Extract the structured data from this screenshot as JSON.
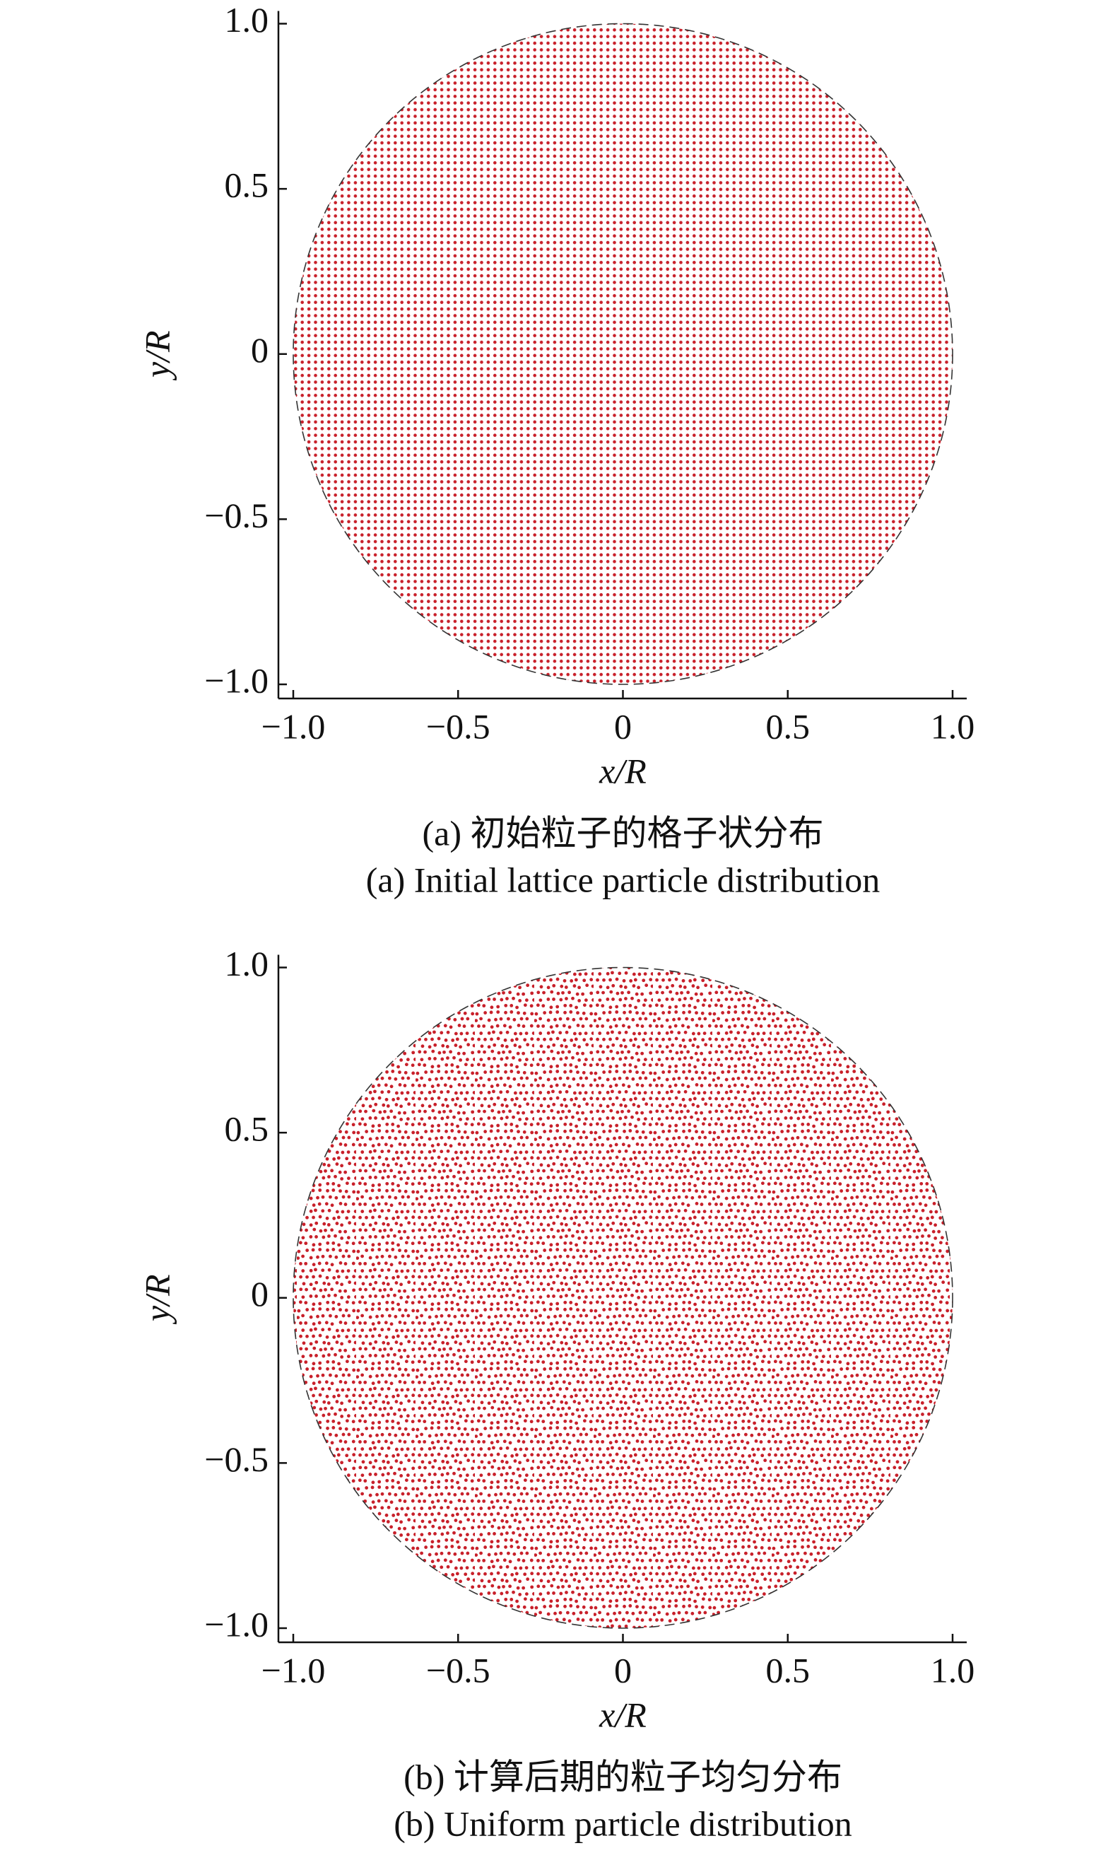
{
  "chart_data": [
    {
      "type": "scatter",
      "xlabel": "x/R",
      "ylabel": "y/R",
      "caption_cn": "(a) 初始粒子的格子状分布",
      "caption_en": "(a) Initial lattice particle distribution",
      "color": "#c8202a",
      "pattern": "lattice",
      "xlim": [
        -1,
        1
      ],
      "ylim": [
        -1,
        1
      ],
      "xticks": [
        {
          "value": -1,
          "label": "−1.0"
        },
        {
          "value": -0.5,
          "label": "−0.5"
        },
        0,
        0.5,
        {
          "value": 1,
          "label": "1.0"
        }
      ],
      "yticks": [
        {
          "value": -1,
          "label": "−1.0"
        },
        {
          "value": -0.5,
          "label": "−0.5"
        },
        0,
        0.5,
        {
          "value": 1,
          "label": "1.0"
        }
      ]
    },
    {
      "type": "scatter",
      "xlabel": "x/R",
      "ylabel": "y/R",
      "caption_cn": "(b) 计算后期的粒子均匀分布",
      "caption_en": "(b) Uniform particle distribution",
      "color": "#c8202a",
      "pattern": "uniform",
      "xlim": [
        -1,
        1
      ],
      "ylim": [
        -1,
        1
      ],
      "xticks": [
        {
          "value": -1,
          "label": "−1.0"
        },
        {
          "value": -0.5,
          "label": "−0.5"
        },
        0,
        0.5,
        {
          "value": 1,
          "label": "1.0"
        }
      ],
      "yticks": [
        {
          "value": -1,
          "label": "−1.0"
        },
        {
          "value": -0.5,
          "label": "−0.5"
        },
        0,
        0.5,
        {
          "value": 1,
          "label": "1.0"
        }
      ]
    }
  ]
}
